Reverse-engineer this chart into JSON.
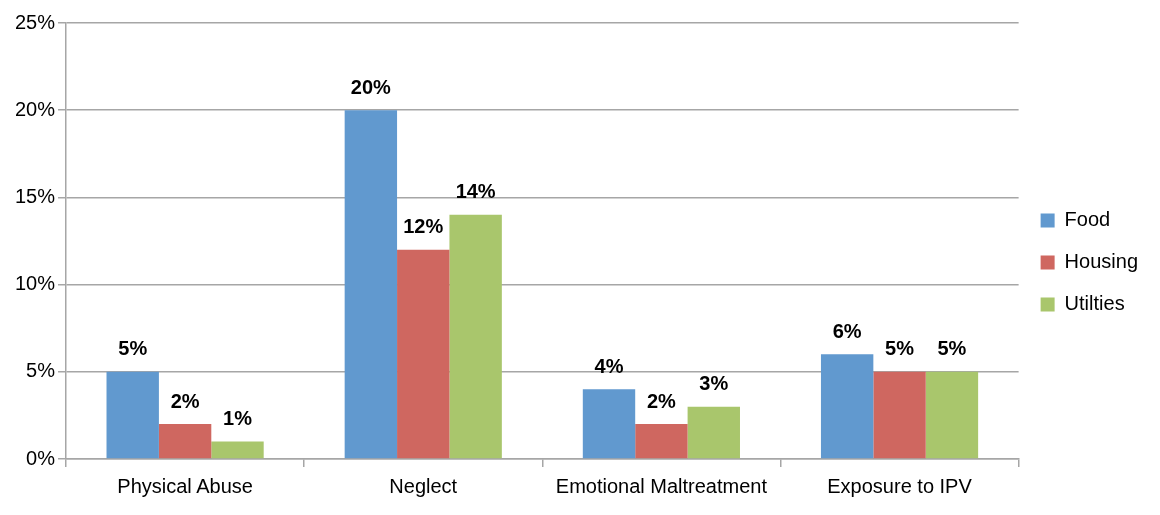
{
  "chart_data": {
    "type": "bar",
    "categories": [
      "Physical Abuse",
      "Neglect",
      "Emotional Maltreatment",
      "Exposure to IPV"
    ],
    "series": [
      {
        "name": "Food",
        "color": "#6199cf",
        "values": [
          5,
          20,
          4,
          6
        ],
        "value_labels": [
          "5%",
          "20%",
          "4%",
          "6%"
        ]
      },
      {
        "name": "Housing",
        "color": "#cf6760",
        "values": [
          2,
          12,
          2,
          5
        ],
        "value_labels": [
          "2%",
          "12%",
          "2%",
          "5%"
        ]
      },
      {
        "name": "Utilties",
        "color": "#a9c66c",
        "values": [
          1,
          14,
          3,
          5
        ],
        "value_labels": [
          "1%",
          "14%",
          "3%",
          "5%"
        ]
      }
    ],
    "ylim": [
      0,
      25
    ],
    "yticks": [
      {
        "value": 0,
        "label": "0%"
      },
      {
        "value": 5,
        "label": "5%"
      },
      {
        "value": 10,
        "label": "10%"
      },
      {
        "value": 15,
        "label": "15%"
      },
      {
        "value": 20,
        "label": "20%"
      },
      {
        "value": 25,
        "label": "25%"
      }
    ],
    "grid": "y",
    "legend": "right"
  }
}
